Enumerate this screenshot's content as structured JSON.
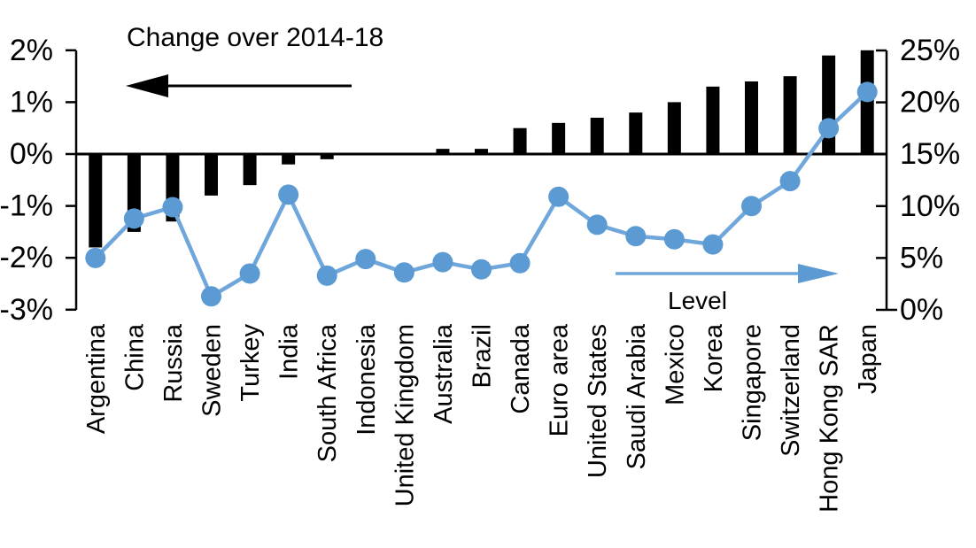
{
  "chart_data": {
    "type": "combo-bar-line",
    "title": "",
    "categories": [
      "Argentina",
      "China",
      "Russia",
      "Sweden",
      "Turkey",
      "India",
      "South Africa",
      "Indonesia",
      "United Kingdom",
      "Australia",
      "Brazil",
      "Canada",
      "Euro area",
      "United States",
      "Saudi Arabia",
      "Mexico",
      "Korea",
      "Singapore",
      "Switzerland",
      "Hong Kong SAR",
      "Japan"
    ],
    "series": [
      {
        "name": "Change over 2014-18",
        "type": "bar",
        "axis": "left",
        "color": "#000000",
        "values": [
          -1.8,
          -1.5,
          -1.3,
          -0.8,
          -0.6,
          -0.2,
          -0.1,
          0.0,
          0.0,
          0.1,
          0.1,
          0.5,
          0.6,
          0.7,
          0.8,
          1.0,
          1.3,
          1.4,
          1.5,
          1.9,
          2.0
        ]
      },
      {
        "name": "Level",
        "type": "line",
        "axis": "right",
        "color": "#5B9AD3",
        "line_color": "#6FA6DB",
        "values": [
          5.0,
          8.8,
          9.9,
          1.3,
          3.5,
          11.1,
          3.3,
          4.9,
          3.6,
          4.6,
          3.9,
          4.5,
          10.9,
          8.2,
          7.1,
          6.8,
          6.3,
          10.0,
          12.4,
          17.5,
          21.0
        ]
      }
    ],
    "left_axis": {
      "min": -3,
      "max": 2,
      "tick_labels": [
        "2%",
        "1%",
        "0%",
        "-1%",
        "-2%",
        "-3%"
      ],
      "tick_values": [
        2,
        1,
        0,
        -1,
        -2,
        -3
      ]
    },
    "right_axis": {
      "min": 0,
      "max": 25,
      "tick_labels": [
        "25%",
        "20%",
        "15%",
        "10%",
        "5%",
        "0%"
      ],
      "tick_values": [
        25,
        20,
        15,
        10,
        5,
        0
      ]
    },
    "arrows": [
      {
        "name": "change-arrow",
        "direction": "left",
        "color": "#000000"
      },
      {
        "name": "level-arrow",
        "direction": "right",
        "color": "#5B9AD3"
      }
    ],
    "grid": false,
    "legend_position": "in-plot-annotations"
  }
}
